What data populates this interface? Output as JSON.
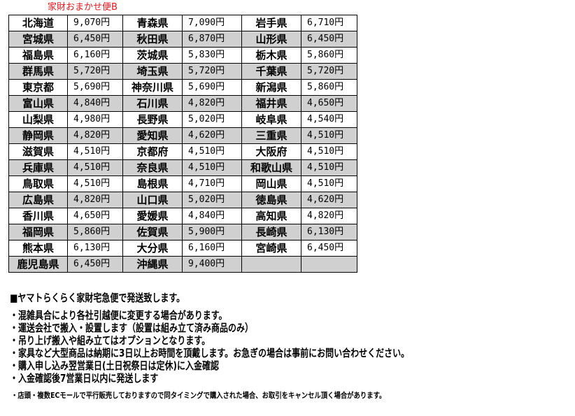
{
  "title": "家財おまかせ便B",
  "colors": {
    "title": "#e8141b",
    "row_shade": "#d0d0d0"
  },
  "rows": [
    [
      [
        "北海道",
        "9,070円"
      ],
      [
        "青森県",
        "7,090円"
      ],
      [
        "岩手県",
        "6,710円"
      ]
    ],
    [
      [
        "宮城県",
        "6,450円"
      ],
      [
        "秋田県",
        "6,870円"
      ],
      [
        "山形県",
        "6,450円"
      ]
    ],
    [
      [
        "福島県",
        "6,160円"
      ],
      [
        "茨城県",
        "5,830円"
      ],
      [
        "栃木県",
        "5,860円"
      ]
    ],
    [
      [
        "群馬県",
        "5,720円"
      ],
      [
        "埼玉県",
        "5,720円"
      ],
      [
        "千葉県",
        "5,720円"
      ]
    ],
    [
      [
        "東京都",
        "5,690円"
      ],
      [
        "神奈川県",
        "5,690円"
      ],
      [
        "新潟県",
        "5,860円"
      ]
    ],
    [
      [
        "富山県",
        "4,840円"
      ],
      [
        "石川県",
        "4,820円"
      ],
      [
        "福井県",
        "4,650円"
      ]
    ],
    [
      [
        "山梨県",
        "4,980円"
      ],
      [
        "長野県",
        "5,020円"
      ],
      [
        "岐阜県",
        "4,540円"
      ]
    ],
    [
      [
        "静岡県",
        "4,820円"
      ],
      [
        "愛知県",
        "4,620円"
      ],
      [
        "三重県",
        "4,510円"
      ]
    ],
    [
      [
        "滋賀県",
        "4,510円"
      ],
      [
        "京都府",
        "4,510円"
      ],
      [
        "大阪府",
        "4,510円"
      ]
    ],
    [
      [
        "兵庫県",
        "4,510円"
      ],
      [
        "奈良県",
        "4,510円"
      ],
      [
        "和歌山県",
        "4,510円"
      ]
    ],
    [
      [
        "鳥取県",
        "4,510円"
      ],
      [
        "島根県",
        "4,710円"
      ],
      [
        "岡山県",
        "4,510円"
      ]
    ],
    [
      [
        "広島県",
        "4,820円"
      ],
      [
        "山口県",
        "5,020円"
      ],
      [
        "徳島県",
        "4,620円"
      ]
    ],
    [
      [
        "香川県",
        "4,650円"
      ],
      [
        "愛媛県",
        "4,840円"
      ],
      [
        "高知県",
        "4,820円"
      ]
    ],
    [
      [
        "福岡県",
        "5,860円"
      ],
      [
        "佐賀県",
        "5,900円"
      ],
      [
        "長崎県",
        "6,130円"
      ]
    ],
    [
      [
        "熊本県",
        "6,130円"
      ],
      [
        "大分県",
        "6,160円"
      ],
      [
        "宮崎県",
        "6,450円"
      ]
    ],
    [
      [
        "鹿児島県",
        "6,450円"
      ],
      [
        "沖縄県",
        "9,400円"
      ],
      [
        "",
        ""
      ]
    ]
  ],
  "notes": {
    "heading": "■ヤマトらくらく家財宅急便で発送致します。",
    "bullets": [
      "・混雑具合により各社引越便に変更する場合があります。",
      "・運送会社で搬入・設置します（設置は組み立て済み商品のみ）",
      "・吊り上げ搬入や組み立てはオプションとなります。",
      "・家具など大型商品は納期に3日以上お時間を頂戴します。お急ぎの場合は事前にお問い合わせください。",
      "・購入申し込み翌営業日(土日祝祭日は定休)に入金確認",
      "・入金確認後7営業日以内に発送します"
    ],
    "footnote": "・店頭・複数ECモールで平行販売しておりますので同タイミングで購入された場合、お取引をキャンセル頂く場合があります。"
  }
}
